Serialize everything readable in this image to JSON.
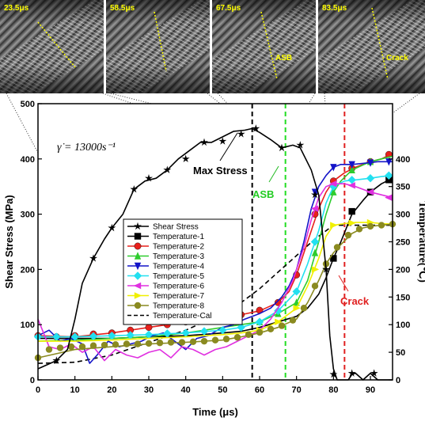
{
  "frames": [
    {
      "time": "23.5μs",
      "note": ""
    },
    {
      "time": "58.5μs",
      "note": ""
    },
    {
      "time": "67.5μs",
      "note": "ASB"
    },
    {
      "time": "83.5μs",
      "note": "Crack"
    }
  ],
  "rate_label": "γ̇ = 13000s⁻¹",
  "annotations": {
    "max_stress": "Max Stress",
    "asb": "ASB",
    "crack": "Crack"
  },
  "colors": {
    "shear": "#000000",
    "t1": "#000000",
    "t2": "#e8201c",
    "t3": "#2ecc2e",
    "t4": "#1414c8",
    "t5": "#22e0f0",
    "t6": "#e030e0",
    "t7": "#f0f000",
    "t8": "#8a8a20",
    "tcal": "#000000",
    "max_line": "#000000",
    "asb_line": "#22dd22",
    "crack_line": "#e02020"
  },
  "chart_data": {
    "type": "line",
    "xlabel": "Time (μs)",
    "ylabel": "Shear Stress (MPa)",
    "y2label": "Temperature(℃)",
    "xlim": [
      0,
      96
    ],
    "ylim": [
      0,
      500
    ],
    "y2lim": [
      0,
      500
    ],
    "xticks": [
      0,
      10,
      20,
      30,
      40,
      50,
      60,
      70,
      80,
      90
    ],
    "yticks": [
      0,
      100,
      200,
      300,
      400,
      500
    ],
    "y2ticks": [
      0,
      50,
      100,
      150,
      200,
      250,
      300,
      350,
      400
    ],
    "vlines": [
      {
        "x": 58,
        "label": "Max Stress",
        "color": "max_line"
      },
      {
        "x": 67,
        "label": "ASB",
        "color": "asb_line"
      },
      {
        "x": 83,
        "label": "Crack",
        "color": "crack_line"
      }
    ],
    "series": [
      {
        "name": "Shear Stress",
        "axis": "left",
        "marker": "star",
        "color": "shear",
        "dashed": false,
        "x": [
          0,
          5,
          8,
          10,
          12,
          15,
          18,
          20,
          23,
          26,
          29,
          32,
          35,
          38,
          41,
          44,
          47,
          50,
          53,
          56,
          58,
          60,
          63,
          66,
          69,
          71,
          74,
          76,
          78,
          79,
          80,
          81,
          82,
          84,
          85,
          86,
          88,
          90,
          92,
          94,
          96
        ],
        "y": [
          20,
          35,
          55,
          110,
          175,
          220,
          255,
          275,
          300,
          345,
          360,
          365,
          380,
          400,
          415,
          430,
          430,
          440,
          450,
          452,
          455,
          448,
          435,
          420,
          425,
          420,
          380,
          335,
          200,
          80,
          20,
          0,
          0,
          0,
          10,
          12,
          0,
          12,
          0,
          0,
          0
        ],
        "markers": [
          [
            5,
            35
          ],
          [
            15,
            220
          ],
          [
            20,
            275
          ],
          [
            26,
            345
          ],
          [
            30,
            365
          ],
          [
            35,
            380
          ],
          [
            40,
            400
          ],
          [
            45,
            430
          ],
          [
            50,
            432
          ],
          [
            55,
            445
          ],
          [
            59,
            455
          ],
          [
            66,
            420
          ],
          [
            71,
            425
          ],
          [
            75,
            335
          ],
          [
            78,
            200
          ],
          [
            80,
            10
          ],
          [
            85,
            12
          ],
          [
            91,
            12
          ]
        ]
      },
      {
        "name": "Temperature-1",
        "axis": "right",
        "marker": "square",
        "color": "t1",
        "dashed": false,
        "x": [
          0,
          10,
          20,
          30,
          40,
          50,
          55,
          60,
          65,
          70,
          73,
          76,
          78,
          80,
          82,
          85,
          88,
          90,
          93,
          96
        ],
        "y": [
          75,
          75,
          75,
          78,
          80,
          85,
          88,
          95,
          105,
          115,
          130,
          155,
          185,
          220,
          250,
          300,
          325,
          340,
          355,
          365
        ],
        "markers": [
          [
            80,
            220
          ],
          [
            85,
            305
          ],
          [
            90,
            340
          ],
          [
            95,
            362
          ]
        ]
      },
      {
        "name": "Temperature-2",
        "axis": "right",
        "marker": "circle",
        "color": "t2",
        "dashed": false,
        "x": [
          0,
          10,
          20,
          30,
          40,
          50,
          55,
          60,
          65,
          68,
          70,
          72,
          74,
          76,
          78,
          80,
          83,
          86,
          90,
          93,
          96
        ],
        "y": [
          80,
          78,
          85,
          95,
          105,
          115,
          118,
          125,
          140,
          160,
          190,
          230,
          270,
          310,
          340,
          360,
          375,
          385,
          395,
          400,
          410
        ],
        "markers": [
          [
            0,
            80
          ],
          [
            5,
            78
          ],
          [
            10,
            80
          ],
          [
            15,
            83
          ],
          [
            20,
            85
          ],
          [
            25,
            90
          ],
          [
            30,
            95
          ],
          [
            35,
            100
          ],
          [
            40,
            105
          ],
          [
            45,
            110
          ],
          [
            50,
            115
          ],
          [
            55,
            118
          ],
          [
            60,
            126
          ],
          [
            65,
            140
          ],
          [
            70,
            190
          ],
          [
            75,
            300
          ],
          [
            80,
            360
          ],
          [
            85,
            383
          ],
          [
            90,
            395
          ],
          [
            95,
            408
          ]
        ]
      },
      {
        "name": "Temperature-3",
        "axis": "right",
        "marker": "triangle-up",
        "color": "t3",
        "dashed": false,
        "x": [
          0,
          10,
          20,
          30,
          40,
          50,
          55,
          60,
          65,
          70,
          73,
          76,
          78,
          80,
          82,
          85,
          90,
          96
        ],
        "y": [
          70,
          72,
          75,
          78,
          85,
          95,
          100,
          105,
          120,
          140,
          180,
          250,
          300,
          340,
          360,
          380,
          395,
          405
        ],
        "markers": [
          [
            55,
            100
          ],
          [
            60,
            105
          ],
          [
            65,
            120
          ],
          [
            70,
            140
          ],
          [
            75,
            230
          ],
          [
            80,
            340
          ],
          [
            85,
            380
          ],
          [
            90,
            395
          ]
        ]
      },
      {
        "name": "Temperature-4",
        "axis": "right",
        "marker": "triangle-down",
        "color": "t4",
        "dashed": false,
        "x": [
          0,
          3,
          6,
          9,
          12,
          14,
          16,
          19,
          22,
          25,
          28,
          31,
          34,
          37,
          40,
          43,
          46,
          50,
          53,
          56,
          60,
          63,
          66,
          68,
          70,
          72,
          74,
          76,
          78,
          80,
          82,
          85,
          88,
          92,
          96
        ],
        "y": [
          80,
          90,
          70,
          75,
          65,
          30,
          45,
          70,
          60,
          65,
          70,
          80,
          85,
          70,
          55,
          75,
          80,
          95,
          100,
          110,
          120,
          130,
          150,
          170,
          200,
          250,
          310,
          350,
          370,
          385,
          390,
          390,
          392,
          395,
          395
        ],
        "markers": [
          [
            75,
            340
          ],
          [
            80,
            385
          ],
          [
            85,
            390
          ],
          [
            90,
            393
          ],
          [
            95,
            395
          ]
        ]
      },
      {
        "name": "Temperature-5",
        "axis": "right",
        "marker": "diamond",
        "color": "t5",
        "dashed": false,
        "x": [
          0,
          10,
          20,
          30,
          40,
          50,
          55,
          60,
          65,
          70,
          73,
          76,
          78,
          80,
          83,
          86,
          90,
          93,
          96
        ],
        "y": [
          78,
          78,
          80,
          82,
          85,
          90,
          95,
          105,
          125,
          160,
          210,
          270,
          320,
          350,
          360,
          362,
          365,
          368,
          370
        ],
        "markers": [
          [
            0,
            78
          ],
          [
            5,
            78
          ],
          [
            10,
            78
          ],
          [
            15,
            79
          ],
          [
            20,
            80
          ],
          [
            25,
            81
          ],
          [
            30,
            82
          ],
          [
            35,
            84
          ],
          [
            40,
            85
          ],
          [
            45,
            88
          ],
          [
            50,
            90
          ],
          [
            55,
            95
          ],
          [
            60,
            105
          ],
          [
            65,
            125
          ],
          [
            70,
            160
          ],
          [
            75,
            250
          ],
          [
            80,
            350
          ],
          [
            85,
            362
          ],
          [
            90,
            365
          ],
          [
            95,
            370
          ]
        ]
      },
      {
        "name": "Temperature-6",
        "axis": "right",
        "marker": "triangle-left",
        "color": "t6",
        "dashed": false,
        "x": [
          0,
          3,
          6,
          9,
          12,
          15,
          18,
          21,
          24,
          27,
          30,
          33,
          36,
          39,
          42,
          45,
          48,
          51,
          54,
          57,
          60,
          63,
          66,
          69,
          72,
          74,
          76,
          78,
          80,
          83,
          86,
          90,
          93,
          96
        ],
        "y": [
          110,
          60,
          55,
          65,
          50,
          60,
          35,
          55,
          45,
          40,
          50,
          55,
          40,
          60,
          55,
          45,
          55,
          60,
          70,
          80,
          90,
          110,
          140,
          180,
          240,
          290,
          330,
          350,
          355,
          355,
          350,
          340,
          335,
          330
        ],
        "markers": [
          [
            75,
            310
          ],
          [
            80,
            355
          ],
          [
            85,
            352
          ],
          [
            90,
            340
          ],
          [
            95,
            330
          ]
        ]
      },
      {
        "name": "Temperature-7",
        "axis": "right",
        "marker": "triangle-right",
        "color": "t7",
        "dashed": false,
        "x": [
          0,
          10,
          20,
          30,
          40,
          50,
          55,
          60,
          65,
          70,
          73,
          76,
          78,
          80,
          83,
          86,
          90,
          93,
          96
        ],
        "y": [
          70,
          70,
          72,
          75,
          78,
          82,
          85,
          90,
          105,
          130,
          170,
          220,
          260,
          280,
          283,
          285,
          285,
          283,
          282
        ],
        "markers": [
          [
            60,
            90
          ],
          [
            65,
            105
          ],
          [
            70,
            130
          ],
          [
            75,
            200
          ],
          [
            80,
            280
          ],
          [
            85,
            284
          ],
          [
            90,
            285
          ]
        ]
      },
      {
        "name": "Temperature-8",
        "axis": "right",
        "marker": "hexagon",
        "color": "t8",
        "dashed": false,
        "x": [
          0,
          10,
          20,
          30,
          40,
          50,
          55,
          60,
          65,
          70,
          73,
          76,
          78,
          80,
          82,
          85,
          88,
          90,
          93,
          96
        ],
        "y": [
          40,
          55,
          60,
          65,
          68,
          72,
          78,
          85,
          95,
          110,
          140,
          180,
          210,
          230,
          245,
          265,
          275,
          278,
          280,
          282
        ],
        "markers": [
          [
            0,
            40
          ],
          [
            3,
            55
          ],
          [
            6,
            58
          ],
          [
            9,
            60
          ],
          [
            12,
            60
          ],
          [
            15,
            62
          ],
          [
            18,
            63
          ],
          [
            21,
            64
          ],
          [
            24,
            65
          ],
          [
            27,
            65
          ],
          [
            30,
            66
          ],
          [
            33,
            67
          ],
          [
            36,
            68
          ],
          [
            39,
            68
          ],
          [
            42,
            69
          ],
          [
            45,
            70
          ],
          [
            48,
            72
          ],
          [
            51,
            74
          ],
          [
            54,
            77
          ],
          [
            57,
            82
          ],
          [
            60,
            86
          ],
          [
            63,
            92
          ],
          [
            66,
            98
          ],
          [
            69,
            108
          ],
          [
            72,
            130
          ],
          [
            75,
            170
          ],
          [
            78,
            210
          ],
          [
            81,
            240
          ],
          [
            84,
            262
          ],
          [
            87,
            273
          ],
          [
            90,
            278
          ],
          [
            93,
            280
          ],
          [
            96,
            282
          ]
        ]
      },
      {
        "name": "Temperature-Cal",
        "axis": "right",
        "marker": "none",
        "color": "tcal",
        "dashed": true,
        "x": [
          0,
          10,
          20,
          30,
          40,
          50,
          55,
          60,
          65,
          70,
          75,
          80,
          85,
          90,
          96
        ],
        "y": [
          30,
          32,
          45,
          68,
          90,
          120,
          140,
          165,
          195,
          225,
          255,
          280,
          280,
          280,
          280
        ],
        "markers": []
      }
    ]
  }
}
